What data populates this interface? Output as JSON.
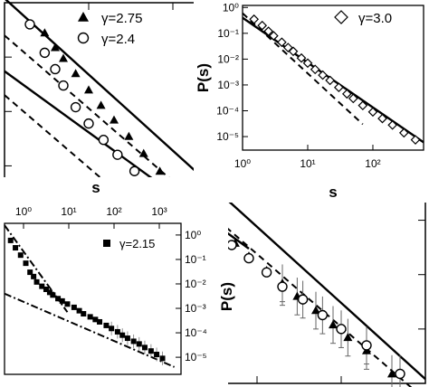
{
  "chart_data": [
    {
      "type": "scatter",
      "panel": "main",
      "xlabel": "s",
      "ylabel": "P(s)",
      "scale": "log-log",
      "xlim": [
        1,
        100000
      ],
      "ylim": [
        1e-06,
        10
      ],
      "legend_position": "top-left",
      "series": [
        {
          "name": "γ=2.75",
          "marker": "filled-triangle",
          "points": [
            [
              3,
              2.8
            ],
            [
              4,
              1.5
            ],
            [
              5,
              0.95
            ],
            [
              7,
              0.5
            ],
            [
              10,
              0.25
            ],
            [
              14,
              0.13
            ],
            [
              20,
              0.07
            ],
            [
              30,
              0.035
            ],
            [
              45,
              0.017
            ],
            [
              70,
              0.008
            ],
            [
              100,
              0.0045
            ],
            [
              150,
              0.0024
            ],
            [
              220,
              0.0013
            ],
            [
              350,
              0.0007
            ],
            [
              550,
              0.00038
            ],
            [
              800,
              0.00022
            ],
            [
              1300,
              0.00012
            ],
            [
              2000,
              7e-05
            ],
            [
              3000,
              4e-05
            ],
            [
              5000,
              2.2e-05
            ],
            [
              8000,
              1.2e-05
            ],
            [
              12000,
              7e-06
            ],
            [
              20000,
              4e-06
            ],
            [
              40000,
              1.5e-06
            ]
          ]
        },
        {
          "name": "γ=2.4",
          "marker": "open-circle",
          "points": [
            [
              2,
              4.0
            ],
            [
              3,
              1.2
            ],
            [
              4,
              0.6
            ],
            [
              5,
              0.3
            ],
            [
              7,
              0.12
            ],
            [
              10,
              0.06
            ],
            [
              15,
              0.03
            ],
            [
              22,
              0.016
            ],
            [
              35,
              0.008
            ],
            [
              50,
              0.005
            ],
            [
              80,
              0.003
            ],
            [
              120,
              0.0018
            ],
            [
              200,
              0.001
            ],
            [
              300,
              0.0006
            ],
            [
              500,
              0.00035
            ],
            [
              800,
              0.0002
            ],
            [
              1300,
              0.00011
            ],
            [
              2000,
              6e-05
            ],
            [
              3500,
              3.5e-05
            ],
            [
              6000,
              1.8e-05
            ],
            [
              10000,
              1e-05
            ],
            [
              20000,
              5e-06
            ],
            [
              50000,
              1.5e-06
            ]
          ]
        }
      ],
      "fits": [
        {
          "style": "solid",
          "from": [
            1,
            12
          ],
          "to": [
            100000,
            1.2e-06
          ]
        },
        {
          "style": "solid",
          "from": [
            1,
            0.55
          ],
          "to": [
            800,
            0.0003
          ]
        },
        {
          "style": "dashed",
          "from": [
            1,
            2.5
          ],
          "to": [
            100000,
            5e-07
          ]
        },
        {
          "style": "dashed",
          "from": [
            1,
            0.2
          ],
          "to": [
            300,
            0.0001
          ]
        }
      ]
    },
    {
      "type": "scatter",
      "panel": "inset-top-right",
      "xlabel": "s",
      "ylabel": "P(s)",
      "scale": "log-log",
      "xlim": [
        1,
        600
      ],
      "ylim": [
        3e-06,
        1.2
      ],
      "xticks": [
        "10⁰",
        "10¹",
        "10²"
      ],
      "yticks": [
        "10⁰",
        "10⁻¹",
        "10⁻²",
        "10⁻³",
        "10⁻⁴",
        "10⁻⁵"
      ],
      "series": [
        {
          "name": "γ=3.0",
          "marker": "open-diamond",
          "points": [
            [
              1.5,
              0.35
            ],
            [
              2,
              0.2
            ],
            [
              2.5,
              0.12
            ],
            [
              3,
              0.08
            ],
            [
              4,
              0.045
            ],
            [
              5,
              0.028
            ],
            [
              6,
              0.02
            ],
            [
              8,
              0.011
            ],
            [
              10,
              0.007
            ],
            [
              13,
              0.004
            ],
            [
              17,
              0.0024
            ],
            [
              22,
              0.0015
            ],
            [
              30,
              0.0008
            ],
            [
              40,
              0.00045
            ],
            [
              50,
              0.0003
            ],
            [
              70,
              0.00016
            ],
            [
              100,
              9e-05
            ],
            [
              140,
              5e-05
            ],
            [
              200,
              2.8e-05
            ],
            [
              300,
              1.4e-05
            ],
            [
              450,
              7.5e-06
            ]
          ]
        }
      ],
      "fits": [
        {
          "style": "dashed",
          "from": [
            1,
            0.6
          ],
          "to": [
            70,
            3e-05
          ]
        },
        {
          "style": "solid",
          "from": [
            1,
            0.4
          ],
          "to": [
            600,
            6e-06
          ]
        }
      ]
    },
    {
      "type": "scatter",
      "panel": "inset-bottom-left",
      "xlabel": "s",
      "ylabel": "P(s)",
      "scale": "log-log",
      "xlim": [
        1,
        2000
      ],
      "ylim": [
        2e-06,
        3
      ],
      "xticks": [
        "10⁰",
        "10¹",
        "10²",
        "10³"
      ],
      "yticks": [
        "10⁰",
        "10⁻¹",
        "10⁻²",
        "10⁻³",
        "10⁻⁴",
        "10⁻⁵"
      ],
      "series": [
        {
          "name": "γ=2.15",
          "marker": "filled-square",
          "points": [
            [
              1.3,
              0.6
            ],
            [
              1.6,
              0.3
            ],
            [
              2,
              0.15
            ],
            [
              2.5,
              0.07
            ],
            [
              3,
              0.03
            ],
            [
              3.5,
              0.02
            ],
            [
              4,
              0.012
            ],
            [
              5,
              0.008
            ],
            [
              6,
              0.006
            ],
            [
              7,
              0.0045
            ],
            [
              8,
              0.0035
            ],
            [
              10,
              0.0025
            ],
            [
              12,
              0.002
            ],
            [
              15,
              0.0015
            ],
            [
              20,
              0.0011
            ],
            [
              25,
              0.0008
            ],
            [
              30,
              0.0006
            ],
            [
              40,
              0.00045
            ],
            [
              50,
              0.00035
            ],
            [
              60,
              0.00028
            ],
            [
              80,
              0.0002
            ],
            [
              100,
              0.00015
            ],
            [
              130,
              0.00011
            ],
            [
              160,
              8e-05
            ],
            [
              200,
              6e-05
            ],
            [
              260,
              4.5e-05
            ],
            [
              330,
              3.5e-05
            ],
            [
              420,
              2.5e-05
            ],
            [
              550,
              1.8e-05
            ],
            [
              700,
              1.3e-05
            ],
            [
              900,
              9e-06
            ]
          ]
        }
      ],
      "fits": [
        {
          "style": "dash-dot",
          "from": [
            1,
            0.004
          ],
          "to": [
            1500,
            4e-06
          ]
        },
        {
          "style": "dash-dot",
          "from": [
            1,
            2.5
          ],
          "to": [
            15,
            0.0007
          ]
        }
      ]
    }
  ]
}
